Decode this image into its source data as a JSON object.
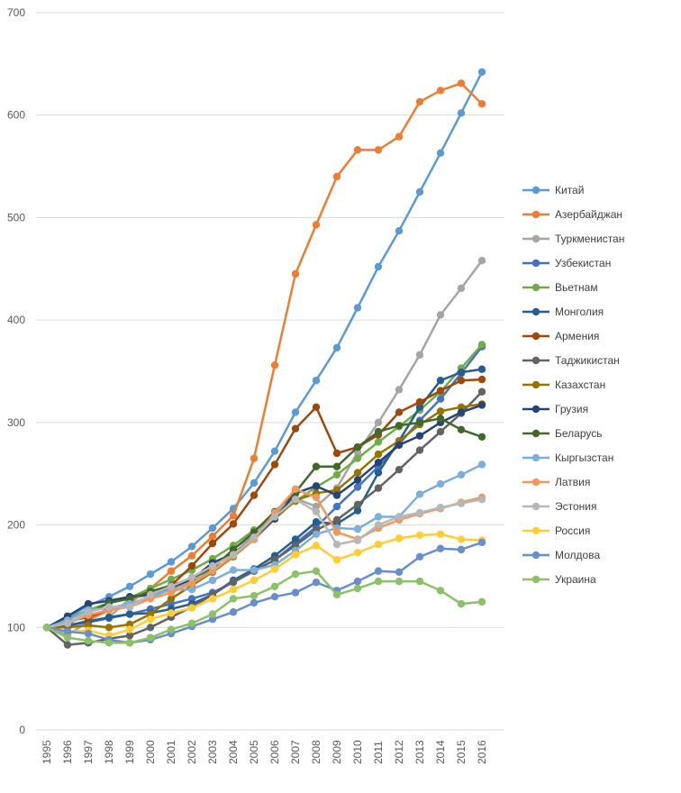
{
  "chart_data": {
    "type": "line",
    "title": "",
    "xlabel": "",
    "ylabel": "",
    "ylim": [
      0,
      700
    ],
    "yticks": [
      0,
      100,
      200,
      300,
      400,
      500,
      600,
      700
    ],
    "grid": true,
    "legend": "right",
    "x": [
      1995,
      1996,
      1997,
      1998,
      1999,
      2000,
      2001,
      2002,
      2003,
      2004,
      2005,
      2006,
      2007,
      2008,
      2009,
      2010,
      2011,
      2012,
      2013,
      2014,
      2015,
      2016
    ],
    "series": [
      {
        "name": "Китай",
        "color": "#5b9bd5",
        "values": [
          100,
          110,
          121,
          130,
          140,
          152,
          164,
          179,
          197,
          216,
          241,
          272,
          310,
          341,
          373,
          412,
          452,
          487,
          525,
          563,
          602,
          642
        ]
      },
      {
        "name": "Азербайджан",
        "color": "#ed7d31",
        "values": [
          100,
          101,
          107,
          117,
          124,
          138,
          155,
          170,
          189,
          209,
          265,
          356,
          445,
          493,
          540,
          566,
          566,
          579,
          613,
          624,
          631,
          611
        ]
      },
      {
        "name": "Туркменистан",
        "color": "#a5a5a5",
        "values": [
          100,
          93,
          105,
          110,
          128,
          132,
          137,
          145,
          156,
          177,
          189,
          211,
          226,
          218,
          236,
          271,
          300,
          332,
          366,
          405,
          431,
          458
        ]
      },
      {
        "name": "Узбекистан",
        "color": "#4472c4",
        "values": [
          100,
          102,
          105,
          109,
          113,
          118,
          123,
          128,
          134,
          144,
          155,
          166,
          182,
          198,
          218,
          237,
          257,
          279,
          302,
          323,
          348,
          374
        ]
      },
      {
        "name": "Вьетнам",
        "color": "#70ad47",
        "values": [
          100,
          109,
          117,
          124,
          129,
          138,
          147,
          156,
          167,
          180,
          195,
          208,
          223,
          237,
          249,
          265,
          281,
          296,
          312,
          330,
          353,
          376
        ]
      },
      {
        "name": "Монголия",
        "color": "#255e91",
        "values": [
          100,
          102,
          106,
          110,
          113,
          114,
          118,
          123,
          132,
          146,
          157,
          170,
          186,
          203,
          201,
          214,
          251,
          282,
          315,
          341,
          349,
          352
        ]
      },
      {
        "name": "Армения",
        "color": "#9e480e",
        "values": [
          100,
          106,
          110,
          118,
          122,
          129,
          141,
          160,
          182,
          201,
          229,
          259,
          294,
          315,
          270,
          276,
          288,
          310,
          320,
          331,
          341,
          342
        ]
      },
      {
        "name": "Таджикистан",
        "color": "#636363",
        "values": [
          100,
          83,
          85,
          89,
          92,
          100,
          110,
          120,
          132,
          145,
          155,
          166,
          180,
          195,
          205,
          220,
          236,
          254,
          273,
          291,
          309,
          330
        ]
      },
      {
        "name": "Казахстан",
        "color": "#997300",
        "values": [
          100,
          100,
          102,
          100,
          103,
          113,
          128,
          141,
          154,
          169,
          186,
          206,
          224,
          231,
          234,
          251,
          269,
          282,
          298,
          311,
          315,
          318
        ]
      },
      {
        "name": "Грузия",
        "color": "#264478",
        "values": [
          100,
          111,
          123,
          126,
          130,
          132,
          139,
          147,
          163,
          172,
          188,
          206,
          231,
          238,
          229,
          244,
          261,
          278,
          287,
          300,
          310,
          317
        ]
      },
      {
        "name": "Беларусь",
        "color": "#43682b",
        "values": [
          100,
          103,
          114,
          124,
          128,
          135,
          141,
          148,
          158,
          176,
          193,
          213,
          232,
          257,
          257,
          276,
          291,
          297,
          300,
          304,
          293,
          286
        ]
      },
      {
        "name": "Кыргызстан",
        "color": "#7cafdd",
        "values": [
          100,
          107,
          117,
          119,
          123,
          130,
          137,
          137,
          146,
          156,
          156,
          161,
          175,
          191,
          197,
          196,
          208,
          208,
          230,
          240,
          249,
          259
        ]
      },
      {
        "name": "Латвия",
        "color": "#f1975a",
        "values": [
          100,
          104,
          112,
          117,
          120,
          128,
          134,
          143,
          155,
          170,
          186,
          212,
          235,
          227,
          193,
          186,
          197,
          205,
          211,
          216,
          222,
          227
        ]
      },
      {
        "name": "Эстония",
        "color": "#b7b7b7",
        "values": [
          100,
          104,
          115,
          120,
          120,
          132,
          140,
          149,
          160,
          171,
          188,
          208,
          225,
          213,
          181,
          185,
          200,
          208,
          212,
          217,
          221,
          225
        ]
      },
      {
        "name": "Россия",
        "color": "#ffcd33",
        "values": [
          100,
          96,
          97,
          92,
          98,
          108,
          114,
          119,
          128,
          137,
          146,
          157,
          171,
          180,
          166,
          173,
          181,
          187,
          190,
          191,
          186,
          185
        ]
      },
      {
        "name": "Молдова",
        "color": "#698ed0",
        "values": [
          100,
          96,
          94,
          88,
          85,
          88,
          94,
          101,
          108,
          115,
          124,
          130,
          134,
          144,
          136,
          145,
          155,
          154,
          169,
          177,
          176,
          183
        ]
      },
      {
        "name": "Украина",
        "color": "#8cc168",
        "values": [
          100,
          90,
          87,
          85,
          85,
          90,
          98,
          104,
          113,
          128,
          131,
          140,
          152,
          155,
          132,
          138,
          145,
          145,
          145,
          136,
          123,
          125
        ]
      }
    ]
  }
}
